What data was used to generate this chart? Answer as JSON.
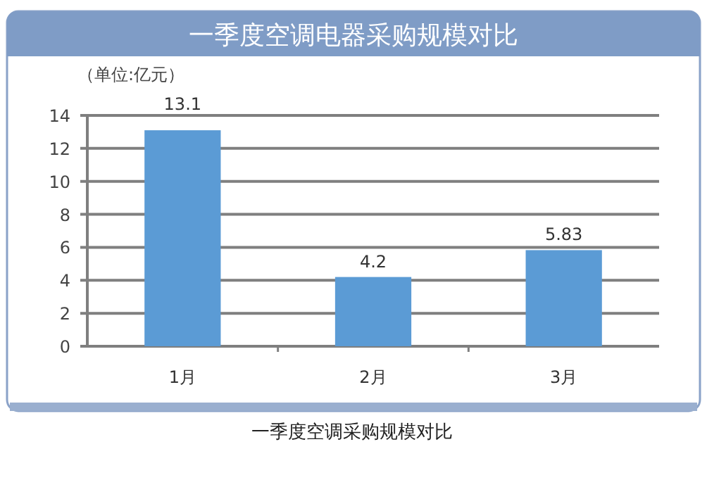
{
  "chart_data": {
    "type": "bar",
    "title": "一季度空调电器采购规模对比",
    "ylabel": "（单位:亿元）",
    "categories": [
      "1月",
      "2月",
      "3月"
    ],
    "values": [
      13.1,
      4.2,
      5.83
    ],
    "color": "#5b9bd5",
    "ylim": [
      0,
      14
    ],
    "yticks": [
      0,
      2,
      4,
      6,
      8,
      10,
      12,
      14
    ],
    "grid": "y",
    "data_labels": true,
    "annotations": [
      "一季度空调采购规模对比"
    ]
  }
}
